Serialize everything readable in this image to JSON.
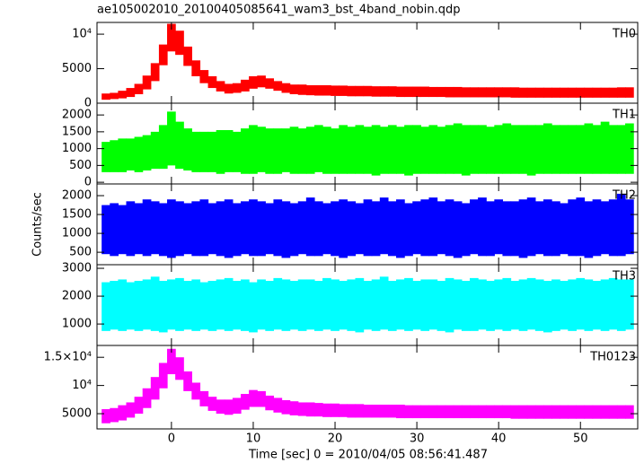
{
  "chart_data": [
    {
      "type": "range",
      "title": "ae105002010_20100405085641_wam3_bst_4band_nobin.qdp",
      "label": "TH0",
      "color": "#ff0000",
      "xlim": [
        -9.1,
        57.0
      ],
      "ylim": [
        0,
        11700
      ],
      "yticks": [
        0,
        5000,
        {
          "value": 10000,
          "label": "10⁴"
        }
      ],
      "x": [
        -8,
        -7,
        -6,
        -5,
        -4,
        -3,
        -2,
        -1,
        0,
        1,
        2,
        3,
        4,
        5,
        6,
        7,
        8,
        9,
        10,
        11,
        12,
        13,
        14,
        15,
        16,
        17,
        18,
        19,
        20,
        21,
        22,
        23,
        24,
        25,
        26,
        27,
        28,
        29,
        30,
        31,
        32,
        33,
        34,
        35,
        36,
        37,
        38,
        39,
        40,
        41,
        42,
        43,
        44,
        45,
        46,
        47,
        48,
        49,
        50,
        51,
        52,
        53,
        54,
        55,
        56
      ],
      "high": [
        1400,
        1500,
        1800,
        2200,
        2800,
        4000,
        5800,
        8500,
        11500,
        10500,
        8200,
        6200,
        4800,
        3900,
        3200,
        2800,
        2900,
        3400,
        3900,
        4000,
        3600,
        3200,
        2900,
        2700,
        2700,
        2600,
        2600,
        2600,
        2550,
        2550,
        2500,
        2500,
        2500,
        2450,
        2450,
        2450,
        2400,
        2400,
        2400,
        2400,
        2350,
        2350,
        2350,
        2350,
        2300,
        2300,
        2300,
        2300,
        2300,
        2300,
        2300,
        2250,
        2250,
        2250,
        2250,
        2250,
        2250,
        2250,
        2250,
        2250,
        2250,
        2250,
        2250,
        2300,
        2300
      ],
      "low": [
        500,
        600,
        700,
        900,
        1300,
        2000,
        3200,
        5500,
        7500,
        7000,
        5400,
        3900,
        2900,
        2200,
        1700,
        1400,
        1500,
        1700,
        2100,
        2300,
        2100,
        1800,
        1500,
        1300,
        1200,
        1150,
        1100,
        1100,
        1050,
        1050,
        1000,
        1000,
        1000,
        950,
        950,
        950,
        900,
        900,
        900,
        900,
        900,
        900,
        850,
        850,
        850,
        850,
        850,
        850,
        850,
        850,
        800,
        800,
        800,
        800,
        800,
        800,
        800,
        800,
        800,
        800,
        800,
        800,
        800,
        800,
        800
      ]
    },
    {
      "type": "range",
      "label": "TH1",
      "color": "#00ff00",
      "xlim": [
        -9.1,
        57.0
      ],
      "ylim": [
        -50,
        2350
      ],
      "yticks": [
        0,
        500,
        1000,
        1500,
        2000
      ],
      "x": [
        -8,
        -7,
        -6,
        -5,
        -4,
        -3,
        -2,
        -1,
        0,
        1,
        2,
        3,
        4,
        5,
        6,
        7,
        8,
        9,
        10,
        11,
        12,
        13,
        14,
        15,
        16,
        17,
        18,
        19,
        20,
        21,
        22,
        23,
        24,
        25,
        26,
        27,
        28,
        29,
        30,
        31,
        32,
        33,
        34,
        35,
        36,
        37,
        38,
        39,
        40,
        41,
        42,
        43,
        44,
        45,
        46,
        47,
        48,
        49,
        50,
        51,
        52,
        53,
        54,
        55,
        56
      ],
      "high": [
        1200,
        1250,
        1300,
        1300,
        1350,
        1400,
        1500,
        1700,
        2100,
        1800,
        1600,
        1500,
        1500,
        1500,
        1550,
        1550,
        1500,
        1600,
        1700,
        1650,
        1600,
        1600,
        1600,
        1650,
        1600,
        1650,
        1700,
        1650,
        1600,
        1700,
        1650,
        1700,
        1650,
        1700,
        1650,
        1700,
        1650,
        1700,
        1700,
        1650,
        1700,
        1650,
        1700,
        1750,
        1700,
        1700,
        1700,
        1650,
        1700,
        1750,
        1700,
        1700,
        1700,
        1700,
        1750,
        1700,
        1700,
        1700,
        1700,
        1750,
        1700,
        1800,
        1700,
        1700,
        1750
      ],
      "low": [
        300,
        300,
        300,
        350,
        300,
        350,
        400,
        400,
        500,
        400,
        350,
        300,
        300,
        300,
        250,
        300,
        300,
        250,
        250,
        300,
        250,
        250,
        300,
        250,
        250,
        250,
        300,
        250,
        250,
        250,
        250,
        250,
        250,
        200,
        250,
        250,
        250,
        200,
        250,
        250,
        250,
        250,
        250,
        250,
        200,
        250,
        250,
        250,
        250,
        250,
        250,
        250,
        200,
        250,
        250,
        250,
        250,
        250,
        250,
        250,
        250,
        250,
        250,
        250,
        250
      ]
    },
    {
      "type": "range",
      "label": "TH2",
      "color": "#0000ff",
      "ylabel": "Counts/sec",
      "xlim": [
        -9.1,
        57.0
      ],
      "ylim": [
        170,
        2310
      ],
      "yticks": [
        500,
        1000,
        1500,
        2000
      ],
      "x": [
        -8,
        -7,
        -6,
        -5,
        -4,
        -3,
        -2,
        -1,
        0,
        1,
        2,
        3,
        4,
        5,
        6,
        7,
        8,
        9,
        10,
        11,
        12,
        13,
        14,
        15,
        16,
        17,
        18,
        19,
        20,
        21,
        22,
        23,
        24,
        25,
        26,
        27,
        28,
        29,
        30,
        31,
        32,
        33,
        34,
        35,
        36,
        37,
        38,
        39,
        40,
        41,
        42,
        43,
        44,
        45,
        46,
        47,
        48,
        49,
        50,
        51,
        52,
        53,
        54,
        55,
        56
      ],
      "high": [
        1750,
        1800,
        1750,
        1850,
        1800,
        1900,
        1850,
        1800,
        1900,
        1850,
        1800,
        1850,
        1900,
        1800,
        1850,
        1900,
        1800,
        1850,
        1900,
        1850,
        1800,
        1900,
        1850,
        1800,
        1850,
        1950,
        1850,
        1800,
        1850,
        1900,
        1850,
        1800,
        1900,
        1850,
        1950,
        1850,
        1900,
        1800,
        1850,
        1900,
        1950,
        1850,
        1900,
        1850,
        1800,
        1900,
        1950,
        1850,
        1900,
        1850,
        1850,
        1900,
        1950,
        1850,
        1900,
        1850,
        1800,
        1900,
        1950,
        1850,
        1900,
        1850,
        1900,
        2050,
        1900
      ],
      "low": [
        450,
        400,
        450,
        400,
        450,
        400,
        450,
        400,
        350,
        400,
        450,
        400,
        400,
        450,
        400,
        350,
        400,
        450,
        400,
        400,
        450,
        400,
        350,
        400,
        450,
        400,
        400,
        450,
        400,
        350,
        400,
        450,
        400,
        400,
        450,
        400,
        350,
        400,
        450,
        400,
        400,
        450,
        400,
        350,
        400,
        450,
        400,
        400,
        450,
        400,
        400,
        350,
        400,
        450,
        400,
        400,
        450,
        400,
        400,
        350,
        400,
        450,
        400,
        400,
        450
      ]
    },
    {
      "type": "range",
      "label": "TH3",
      "color": "#00ffff",
      "xlim": [
        -9.1,
        57.0
      ],
      "ylim": [
        230,
        3130
      ],
      "yticks": [
        1000,
        2000,
        3000
      ],
      "x": [
        -8,
        -7,
        -6,
        -5,
        -4,
        -3,
        -2,
        -1,
        0,
        1,
        2,
        3,
        4,
        5,
        6,
        7,
        8,
        9,
        10,
        11,
        12,
        13,
        14,
        15,
        16,
        17,
        18,
        19,
        20,
        21,
        22,
        23,
        24,
        25,
        26,
        27,
        28,
        29,
        30,
        31,
        32,
        33,
        34,
        35,
        36,
        37,
        38,
        39,
        40,
        41,
        42,
        43,
        44,
        45,
        46,
        47,
        48,
        49,
        50,
        51,
        52,
        53,
        54,
        55,
        56
      ],
      "high": [
        2500,
        2550,
        2600,
        2500,
        2550,
        2600,
        2700,
        2550,
        2600,
        2650,
        2550,
        2600,
        2500,
        2550,
        2600,
        2650,
        2550,
        2600,
        2500,
        2600,
        2550,
        2650,
        2600,
        2550,
        2600,
        2600,
        2550,
        2650,
        2600,
        2550,
        2600,
        2650,
        2550,
        2600,
        2700,
        2550,
        2600,
        2650,
        2550,
        2600,
        2600,
        2550,
        2650,
        2600,
        2550,
        2650,
        2600,
        2550,
        2600,
        2650,
        2550,
        2600,
        2650,
        2600,
        2550,
        2600,
        2550,
        2600,
        2650,
        2600,
        2550,
        2600,
        2650,
        2600,
        2600
      ],
      "low": [
        750,
        800,
        750,
        800,
        750,
        800,
        750,
        700,
        800,
        750,
        800,
        750,
        800,
        750,
        800,
        750,
        800,
        750,
        700,
        800,
        750,
        800,
        750,
        800,
        750,
        800,
        750,
        800,
        750,
        800,
        750,
        700,
        800,
        750,
        800,
        750,
        800,
        750,
        800,
        750,
        800,
        750,
        700,
        800,
        750,
        750,
        800,
        750,
        800,
        750,
        800,
        750,
        800,
        750,
        700,
        750,
        800,
        750,
        800,
        750,
        800,
        750,
        800,
        750,
        800
      ]
    },
    {
      "type": "range",
      "label": "TH0123",
      "color": "#ff00ff",
      "xlabel": "Time [sec] 0 = 2010/04/05 08:56:41.487",
      "xlim": [
        -9.1,
        57.0
      ],
      "ylim": [
        2300,
        17100
      ],
      "xticks": [
        0,
        10,
        20,
        30,
        40,
        50
      ],
      "yticks": [
        5000,
        {
          "value": 10000,
          "label": "10⁴"
        },
        {
          "value": 15000,
          "label": "1.5×10⁴"
        }
      ],
      "x": [
        -8,
        -7,
        -6,
        -5,
        -4,
        -3,
        -2,
        -1,
        0,
        1,
        2,
        3,
        4,
        5,
        6,
        7,
        8,
        9,
        10,
        11,
        12,
        13,
        14,
        15,
        16,
        17,
        18,
        19,
        20,
        21,
        22,
        23,
        24,
        25,
        26,
        27,
        28,
        29,
        30,
        31,
        32,
        33,
        34,
        35,
        36,
        37,
        38,
        39,
        40,
        41,
        42,
        43,
        44,
        45,
        46,
        47,
        48,
        49,
        50,
        51,
        52,
        53,
        54,
        55,
        56
      ],
      "high": [
        5800,
        6000,
        6500,
        7000,
        8000,
        9500,
        11500,
        14000,
        16500,
        15000,
        12500,
        10500,
        9000,
        8000,
        7500,
        7500,
        7800,
        8500,
        9200,
        9000,
        8200,
        7800,
        7400,
        7200,
        7000,
        7000,
        6900,
        6800,
        6800,
        6700,
        6700,
        6700,
        6600,
        6600,
        6600,
        6600,
        6600,
        6500,
        6500,
        6500,
        6500,
        6500,
        6500,
        6500,
        6500,
        6500,
        6500,
        6500,
        6500,
        6500,
        6500,
        6500,
        6500,
        6500,
        6500,
        6500,
        6500,
        6500,
        6500,
        6500,
        6500,
        6500,
        6500,
        6500,
        6500
      ],
      "low": [
        3300,
        3500,
        3800,
        4300,
        5000,
        6000,
        7500,
        9500,
        12000,
        11000,
        9000,
        7500,
        6300,
        5500,
        5000,
        4800,
        5000,
        5700,
        6200,
        6200,
        5600,
        5200,
        4900,
        4700,
        4600,
        4500,
        4500,
        4400,
        4400,
        4400,
        4300,
        4300,
        4300,
        4300,
        4300,
        4300,
        4200,
        4200,
        4200,
        4200,
        4200,
        4200,
        4200,
        4200,
        4200,
        4200,
        4200,
        4200,
        4200,
        4200,
        4100,
        4100,
        4100,
        4100,
        4100,
        4100,
        4100,
        4100,
        4100,
        4100,
        4100,
        4100,
        4100,
        4100,
        4100
      ]
    }
  ]
}
